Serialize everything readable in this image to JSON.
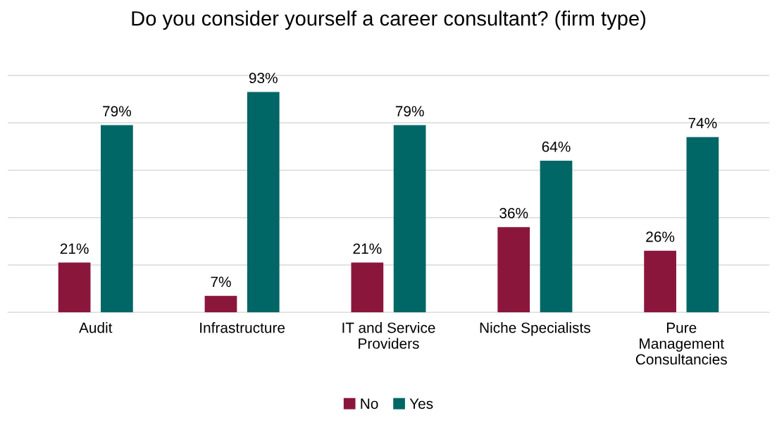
{
  "chart_data": {
    "type": "bar",
    "title": "Do you consider yourself a career consultant? (firm type)",
    "categories": [
      "Audit",
      "Infrastructure",
      "IT and Service\nProviders",
      "Niche Specialists",
      "Pure\nManagement\nConsultancies"
    ],
    "series": [
      {
        "name": "No",
        "color": "#8b163c",
        "values": [
          21,
          7,
          21,
          36,
          26
        ],
        "value_labels": [
          "21%",
          "7%",
          "21%",
          "36%",
          "26%"
        ]
      },
      {
        "name": "Yes",
        "color": "#006666",
        "values": [
          79,
          93,
          79,
          64,
          74
        ],
        "value_labels": [
          "79%",
          "93%",
          "79%",
          "64%",
          "74%"
        ]
      }
    ],
    "tick_labels": "x",
    "grid": "y",
    "legend": "bottom"
  }
}
